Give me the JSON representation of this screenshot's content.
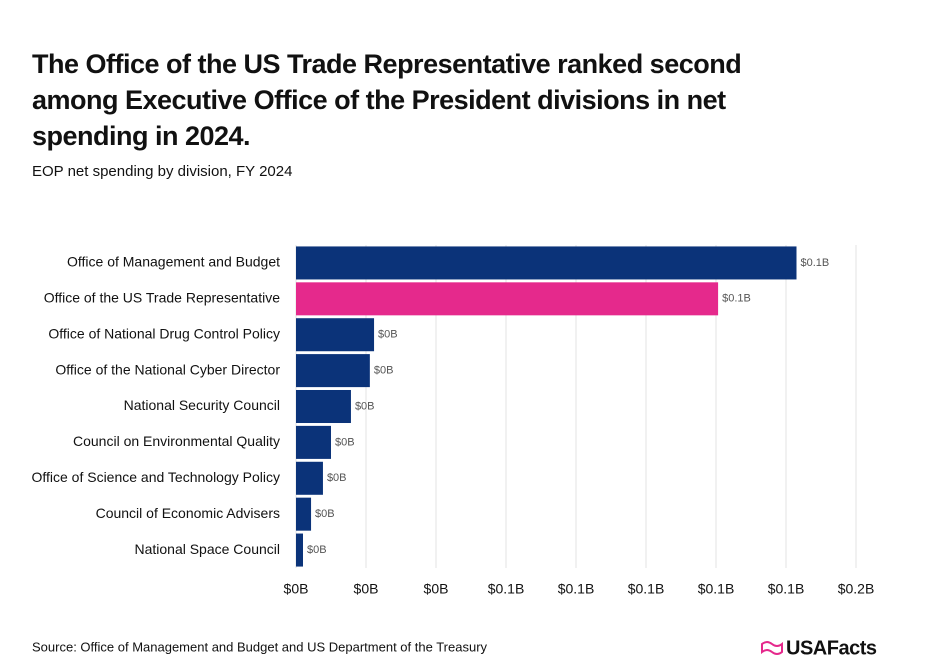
{
  "chart_data": {
    "type": "bar",
    "orientation": "horizontal",
    "title": "The Office of the US Trade Representative ranked second among Executive Office of the President divisions in net spending in 2024.",
    "subtitle": "EOP net spending by division, FY 2024",
    "source": "Source: Office of Management and Budget and US Department of the Treasury",
    "brand": "USAFacts",
    "categories": [
      "Office of Management and Budget",
      "Office of the US Trade Representative",
      "Office of National Drug Control Policy",
      "Office of the National Cyber Director",
      "National Security Council",
      "Council on Environmental Quality",
      "Office of Science and Technology Policy",
      "Council of Economic Advisers",
      "National Space Council"
    ],
    "values": [
      0.143,
      0.1206,
      0.0223,
      0.0211,
      0.0157,
      0.01,
      0.0077,
      0.0043,
      0.002
    ],
    "value_labels": [
      "$0.1B",
      "$0.1B",
      "$0B",
      "$0B",
      "$0B",
      "$0B",
      "$0B",
      "$0B",
      "$0B"
    ],
    "colors": [
      "#0b3379",
      "#e5298c",
      "#0b3379",
      "#0b3379",
      "#0b3379",
      "#0b3379",
      "#0b3379",
      "#0b3379",
      "#0b3379"
    ],
    "xlim": [
      0,
      0.16
    ],
    "xticks": [
      {
        "value": 0,
        "label": "$0B"
      },
      {
        "value": 0.02,
        "label": "$0B"
      },
      {
        "value": 0.04,
        "label": "$0B"
      },
      {
        "value": 0.06,
        "label": "$0.1B"
      },
      {
        "value": 0.08,
        "label": "$0.1B"
      },
      {
        "value": 0.1,
        "label": "$0.1B"
      },
      {
        "value": 0.12,
        "label": "$0.1B"
      },
      {
        "value": 0.14,
        "label": "$0.1B"
      },
      {
        "value": 0.16,
        "label": "$0.2B"
      }
    ],
    "grid": true
  }
}
